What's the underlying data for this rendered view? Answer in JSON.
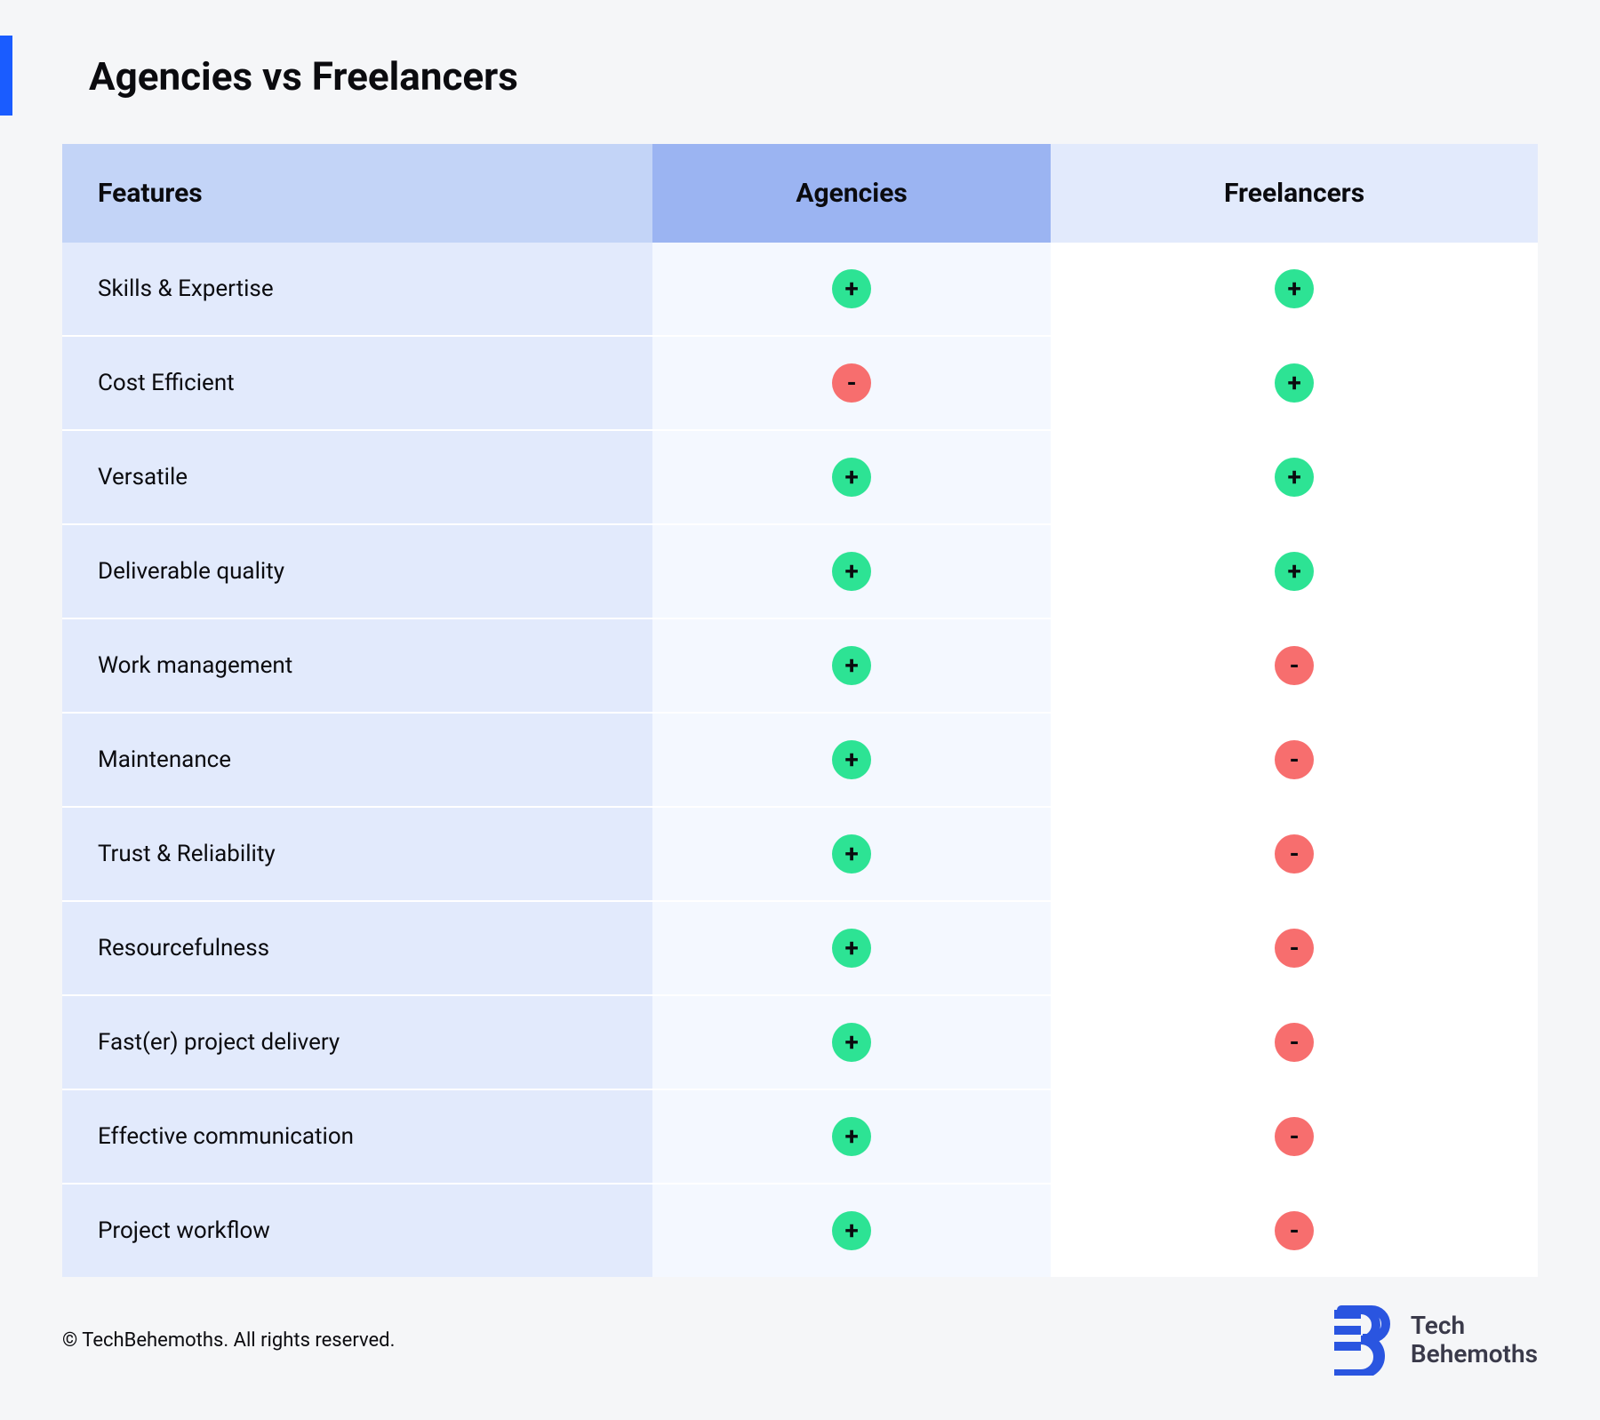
{
  "title": "Agencies vs Freelancers",
  "colors": {
    "page_bg": "#f5f6f8",
    "accent": "#1a5cff",
    "header_col1_bg": "#c3d4f7",
    "header_col2_bg": "#9bb4f2",
    "header_col3_bg": "#e2eafc",
    "col1_bg": "#e2eafc",
    "col2_bg": "#f4f8ff",
    "col3_bg": "#ffffff",
    "plus_bg": "#2de394",
    "minus_bg": "#f76e6e",
    "badge_text": "#0b0b0f",
    "logo": "#2a55e0"
  },
  "columns": {
    "features": "Features",
    "agencies": "Agencies",
    "freelancers": "Freelancers"
  },
  "rows": [
    {
      "feature": "Skills & Expertise",
      "agencies": "plus",
      "freelancers": "plus"
    },
    {
      "feature": "Cost Efficient",
      "agencies": "minus",
      "freelancers": "plus"
    },
    {
      "feature": "Versatile",
      "agencies": "plus",
      "freelancers": "plus"
    },
    {
      "feature": "Deliverable quality",
      "agencies": "plus",
      "freelancers": "plus"
    },
    {
      "feature": "Work management",
      "agencies": "plus",
      "freelancers": "minus"
    },
    {
      "feature": "Maintenance",
      "agencies": "plus",
      "freelancers": "minus"
    },
    {
      "feature": "Trust & Reliability",
      "agencies": "plus",
      "freelancers": "minus"
    },
    {
      "feature": "Resourcefulness",
      "agencies": "plus",
      "freelancers": "minus"
    },
    {
      "feature": "Fast(er) project delivery",
      "agencies": "plus",
      "freelancers": "minus"
    },
    {
      "feature": "Effective communication",
      "agencies": "plus",
      "freelancers": "minus"
    },
    {
      "feature": "Project workflow",
      "agencies": "plus",
      "freelancers": "minus"
    }
  ],
  "column_widths_pct": [
    40,
    27,
    33
  ],
  "footer": {
    "copyright": "© TechBehemoths. All rights reserved.",
    "brand_line1": "Tech",
    "brand_line2": "Behemoths"
  }
}
